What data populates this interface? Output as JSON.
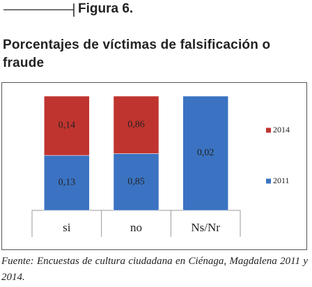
{
  "figure_label": "Figura 6.",
  "chart_data": {
    "type": "bar",
    "stack": "percent",
    "title": "Porcentajes de víctimas de falsificación o fraude",
    "categories": [
      "si",
      "no",
      "Ns/Nr"
    ],
    "series": [
      {
        "name": "2011",
        "color": "#3b73c2",
        "values": [
          0.13,
          0.85,
          0.02
        ],
        "value_labels": [
          "0,13",
          "0,85",
          "0,02"
        ]
      },
      {
        "name": "2014",
        "color": "#c0342f",
        "values": [
          0.14,
          0.86,
          null
        ],
        "value_labels": [
          "0,14",
          "0,86",
          null
        ]
      }
    ],
    "legend": "right"
  },
  "source": "Fuente: Encuestas de cultura ciudadana en Ciénaga, Magdalena 2011 y 2014."
}
